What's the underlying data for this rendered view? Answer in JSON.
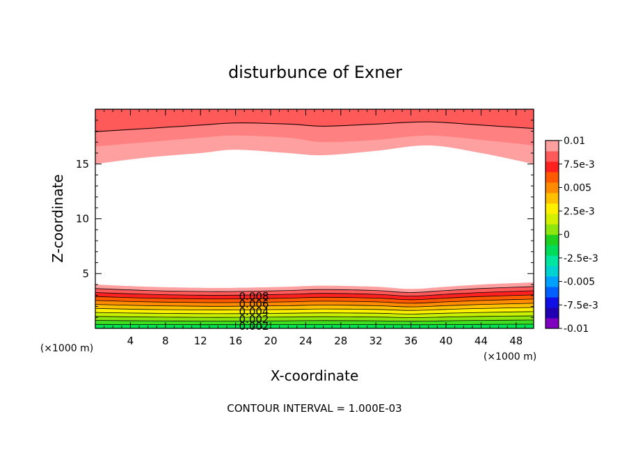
{
  "chart_data": {
    "type": "heatmap",
    "title": "disturbunce of Exner",
    "xlabel": "X-coordinate",
    "ylabel": "Z-coordinate",
    "x_unit_left": "(×1000 m)",
    "x_unit_right": "(×1000 m)",
    "xlim": [
      0,
      50
    ],
    "ylim": [
      0,
      20
    ],
    "x_ticks": [
      "4",
      "8",
      "12",
      "16",
      "20",
      "24",
      "28",
      "32",
      "36",
      "40",
      "44",
      "48"
    ],
    "y_ticks": [
      "5",
      "10",
      "15"
    ],
    "footer": "CONTOUR INTERVAL = 1.000E-03",
    "contour_labels": [
      "0.008",
      "0.006",
      "0.004",
      "0.002",
      "0.002"
    ],
    "colorbar": {
      "labels": [
        "0.01",
        "7.5e-3",
        "0.005",
        "2.5e-3",
        "0",
        "-2.5e-3",
        "-0.005",
        "-7.5e-3",
        "-0.01"
      ],
      "colors": [
        "#7f00bf",
        "#2000b0",
        "#1010e6",
        "#0060ff",
        "#00a0ff",
        "#00d2d2",
        "#00e6a0",
        "#00dc5a",
        "#20d020",
        "#8ee60e",
        "#d2f000",
        "#fff000",
        "#ffc000",
        "#ff8c00",
        "#ff5a00",
        "#ff2020",
        "#ff5a5a",
        "#ffa0a0"
      ]
    },
    "upper_layer": {
      "x": [
        0,
        6,
        12,
        16,
        22,
        26,
        32,
        38,
        44,
        50
      ],
      "bands": [
        {
          "color": "#ff5a5a",
          "z_bottom": [
            17.9,
            18.2,
            18.5,
            18.7,
            18.6,
            18.4,
            18.6,
            18.8,
            18.5,
            18.2
          ]
        },
        {
          "color": "#ff8080",
          "z_bottom": [
            16.6,
            17.0,
            17.4,
            17.6,
            17.4,
            17.0,
            17.2,
            17.6,
            17.2,
            16.7
          ]
        },
        {
          "color": "#ffa0a0",
          "z_bottom": [
            15.0,
            15.6,
            16.0,
            16.3,
            16.0,
            15.8,
            16.2,
            16.7,
            16.0,
            15.0
          ]
        }
      ]
    },
    "lower_layer": {
      "x": [
        0,
        6,
        12,
        16,
        22,
        26,
        32,
        36,
        40,
        44,
        50
      ],
      "top_height": [
        4.0,
        3.8,
        3.7,
        3.7,
        3.8,
        3.9,
        3.8,
        3.6,
        3.8,
        4.0,
        4.2
      ],
      "level_colors": [
        "#00e650",
        "#40dc20",
        "#8ee60e",
        "#c8f000",
        "#fff000",
        "#ffc000",
        "#ff8c00",
        "#ff5a00",
        "#ff2020",
        "#ff5a5a",
        "#ffa0a0"
      ]
    }
  }
}
